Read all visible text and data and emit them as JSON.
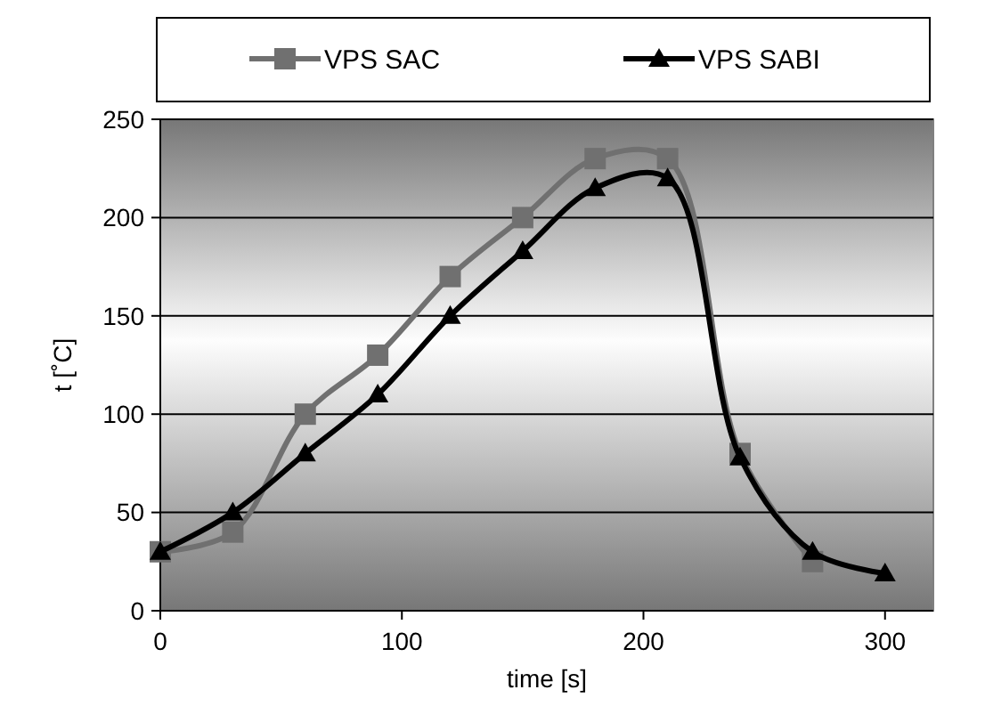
{
  "chart_data": {
    "type": "line",
    "xlabel": "time [s]",
    "ylabel": "t [˚C]",
    "xlim": [
      0,
      320
    ],
    "xticks": [
      0,
      100,
      200,
      300
    ],
    "ylim": [
      0,
      250
    ],
    "yticks": [
      0,
      50,
      100,
      150,
      200,
      250
    ],
    "grid": "y",
    "legend": "top",
    "series": [
      {
        "name": "VPS SAC",
        "color": "#707070",
        "marker": "square",
        "x": [
          0,
          30,
          60,
          90,
          120,
          150,
          180,
          210,
          240,
          270
        ],
        "values": [
          30,
          40,
          100,
          130,
          170,
          200,
          230,
          230,
          80,
          25
        ]
      },
      {
        "name": "VPS SABI",
        "color": "#000000",
        "marker": "triangle",
        "x": [
          0,
          30,
          60,
          90,
          120,
          150,
          180,
          210,
          240,
          270,
          300
        ],
        "values": [
          30,
          50,
          80,
          110,
          150,
          183,
          215,
          220,
          78,
          30,
          19
        ]
      }
    ]
  }
}
